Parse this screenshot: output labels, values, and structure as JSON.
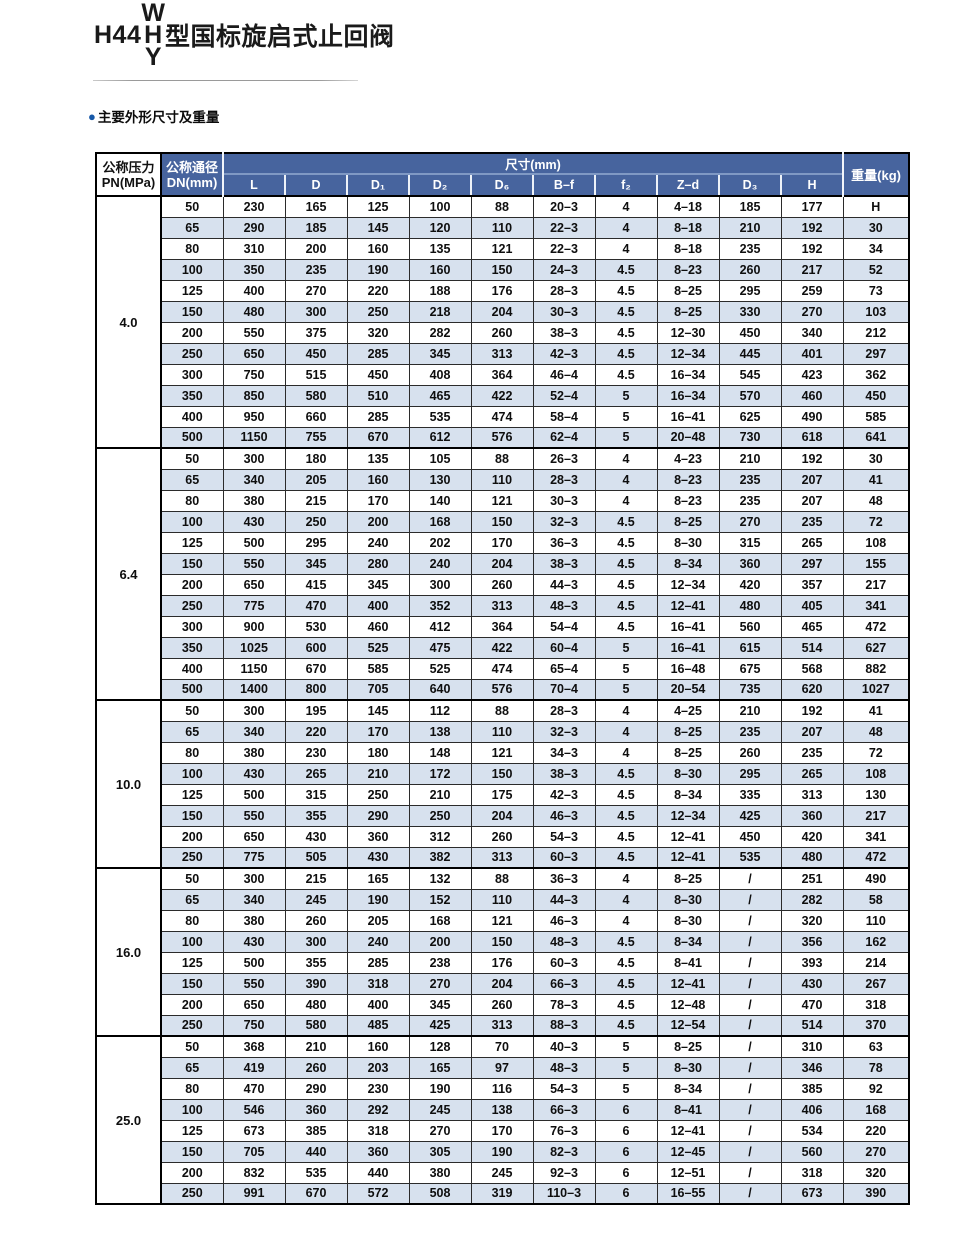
{
  "page": {
    "title": {
      "prefix": "H44",
      "stack_top": "W",
      "stack_mid": "H",
      "stack_bottom": "Y",
      "suffix": "型国标旋启式止回阀"
    },
    "section": {
      "bullet": "●",
      "label": "主要外形尺寸及重量"
    },
    "colors": {
      "header_blue": "#47649e",
      "row_stripe": "#d7e1ee",
      "bullet_blue": "#1658a8"
    }
  },
  "table": {
    "header": {
      "pressure_line1": "公称压力",
      "pressure_line2": "PN(MPa)",
      "dn_line1": "公称通径",
      "dn_line2": "DN(mm)",
      "size_span": "尺寸(mm)",
      "weight": "重量(kg)",
      "dim_cols": [
        "L",
        "D",
        "D₁",
        "D₂",
        "D₆",
        "B–f",
        "f₂",
        "Z–d",
        "D₃",
        "H"
      ]
    },
    "groups": [
      {
        "pn": "4.0",
        "rows": [
          [
            "50",
            "230",
            "165",
            "125",
            "100",
            "88",
            "20–3",
            "4",
            "4–18",
            "185",
            "177",
            "H"
          ],
          [
            "65",
            "290",
            "185",
            "145",
            "120",
            "110",
            "22–3",
            "4",
            "8–18",
            "210",
            "192",
            "30"
          ],
          [
            "80",
            "310",
            "200",
            "160",
            "135",
            "121",
            "22–3",
            "4",
            "8–18",
            "235",
            "192",
            "34"
          ],
          [
            "100",
            "350",
            "235",
            "190",
            "160",
            "150",
            "24–3",
            "4.5",
            "8–23",
            "260",
            "217",
            "52"
          ],
          [
            "125",
            "400",
            "270",
            "220",
            "188",
            "176",
            "28–3",
            "4.5",
            "8–25",
            "295",
            "259",
            "73"
          ],
          [
            "150",
            "480",
            "300",
            "250",
            "218",
            "204",
            "30–3",
            "4.5",
            "8–25",
            "330",
            "270",
            "103"
          ],
          [
            "200",
            "550",
            "375",
            "320",
            "282",
            "260",
            "38–3",
            "4.5",
            "12–30",
            "450",
            "340",
            "212"
          ],
          [
            "250",
            "650",
            "450",
            "285",
            "345",
            "313",
            "42–3",
            "4.5",
            "12–34",
            "445",
            "401",
            "297"
          ],
          [
            "300",
            "750",
            "515",
            "450",
            "408",
            "364",
            "46–4",
            "4.5",
            "16–34",
            "545",
            "423",
            "362"
          ],
          [
            "350",
            "850",
            "580",
            "510",
            "465",
            "422",
            "52–4",
            "5",
            "16–34",
            "570",
            "460",
            "450"
          ],
          [
            "400",
            "950",
            "660",
            "285",
            "535",
            "474",
            "58–4",
            "5",
            "16–41",
            "625",
            "490",
            "585"
          ],
          [
            "500",
            "1150",
            "755",
            "670",
            "612",
            "576",
            "62–4",
            "5",
            "20–48",
            "730",
            "618",
            "641"
          ]
        ]
      },
      {
        "pn": "6.4",
        "rows": [
          [
            "50",
            "300",
            "180",
            "135",
            "105",
            "88",
            "26–3",
            "4",
            "4–23",
            "210",
            "192",
            "30"
          ],
          [
            "65",
            "340",
            "205",
            "160",
            "130",
            "110",
            "28–3",
            "4",
            "8–23",
            "235",
            "207",
            "41"
          ],
          [
            "80",
            "380",
            "215",
            "170",
            "140",
            "121",
            "30–3",
            "4",
            "8–23",
            "235",
            "207",
            "48"
          ],
          [
            "100",
            "430",
            "250",
            "200",
            "168",
            "150",
            "32–3",
            "4.5",
            "8–25",
            "270",
            "235",
            "72"
          ],
          [
            "125",
            "500",
            "295",
            "240",
            "202",
            "170",
            "36–3",
            "4.5",
            "8–30",
            "315",
            "265",
            "108"
          ],
          [
            "150",
            "550",
            "345",
            "280",
            "240",
            "204",
            "38–3",
            "4.5",
            "8–34",
            "360",
            "297",
            "155"
          ],
          [
            "200",
            "650",
            "415",
            "345",
            "300",
            "260",
            "44–3",
            "4.5",
            "12–34",
            "420",
            "357",
            "217"
          ],
          [
            "250",
            "775",
            "470",
            "400",
            "352",
            "313",
            "48–3",
            "4.5",
            "12–41",
            "480",
            "405",
            "341"
          ],
          [
            "300",
            "900",
            "530",
            "460",
            "412",
            "364",
            "54–4",
            "4.5",
            "16–41",
            "560",
            "465",
            "472"
          ],
          [
            "350",
            "1025",
            "600",
            "525",
            "475",
            "422",
            "60–4",
            "5",
            "16–41",
            "615",
            "514",
            "627"
          ],
          [
            "400",
            "1150",
            "670",
            "585",
            "525",
            "474",
            "65–4",
            "5",
            "16–48",
            "675",
            "568",
            "882"
          ],
          [
            "500",
            "1400",
            "800",
            "705",
            "640",
            "576",
            "70–4",
            "5",
            "20–54",
            "735",
            "620",
            "1027"
          ]
        ]
      },
      {
        "pn": "10.0",
        "rows": [
          [
            "50",
            "300",
            "195",
            "145",
            "112",
            "88",
            "28–3",
            "4",
            "4–25",
            "210",
            "192",
            "41"
          ],
          [
            "65",
            "340",
            "220",
            "170",
            "138",
            "110",
            "32–3",
            "4",
            "8–25",
            "235",
            "207",
            "48"
          ],
          [
            "80",
            "380",
            "230",
            "180",
            "148",
            "121",
            "34–3",
            "4",
            "8–25",
            "260",
            "235",
            "72"
          ],
          [
            "100",
            "430",
            "265",
            "210",
            "172",
            "150",
            "38–3",
            "4.5",
            "8–30",
            "295",
            "265",
            "108"
          ],
          [
            "125",
            "500",
            "315",
            "250",
            "210",
            "175",
            "42–3",
            "4.5",
            "8–34",
            "335",
            "313",
            "130"
          ],
          [
            "150",
            "550",
            "355",
            "290",
            "250",
            "204",
            "46–3",
            "4.5",
            "12–34",
            "425",
            "360",
            "217"
          ],
          [
            "200",
            "650",
            "430",
            "360",
            "312",
            "260",
            "54–3",
            "4.5",
            "12–41",
            "450",
            "420",
            "341"
          ],
          [
            "250",
            "775",
            "505",
            "430",
            "382",
            "313",
            "60–3",
            "4.5",
            "12–41",
            "535",
            "480",
            "472"
          ]
        ]
      },
      {
        "pn": "16.0",
        "rows": [
          [
            "50",
            "300",
            "215",
            "165",
            "132",
            "88",
            "36–3",
            "4",
            "8–25",
            "/",
            "251",
            "490"
          ],
          [
            "65",
            "340",
            "245",
            "190",
            "152",
            "110",
            "44–3",
            "4",
            "8–30",
            "/",
            "282",
            "58"
          ],
          [
            "80",
            "380",
            "260",
            "205",
            "168",
            "121",
            "46–3",
            "4",
            "8–30",
            "/",
            "320",
            "110"
          ],
          [
            "100",
            "430",
            "300",
            "240",
            "200",
            "150",
            "48–3",
            "4.5",
            "8–34",
            "/",
            "356",
            "162"
          ],
          [
            "125",
            "500",
            "355",
            "285",
            "238",
            "176",
            "60–3",
            "4.5",
            "8–41",
            "/",
            "393",
            "214"
          ],
          [
            "150",
            "550",
            "390",
            "318",
            "270",
            "204",
            "66–3",
            "4.5",
            "12–41",
            "/",
            "430",
            "267"
          ],
          [
            "200",
            "650",
            "480",
            "400",
            "345",
            "260",
            "78–3",
            "4.5",
            "12–48",
            "/",
            "470",
            "318"
          ],
          [
            "250",
            "750",
            "580",
            "485",
            "425",
            "313",
            "88–3",
            "4.5",
            "12–54",
            "/",
            "514",
            "370"
          ]
        ]
      },
      {
        "pn": "25.0",
        "rows": [
          [
            "50",
            "368",
            "210",
            "160",
            "128",
            "70",
            "40–3",
            "5",
            "8–25",
            "/",
            "310",
            "63"
          ],
          [
            "65",
            "419",
            "260",
            "203",
            "165",
            "97",
            "48–3",
            "5",
            "8–30",
            "/",
            "346",
            "78"
          ],
          [
            "80",
            "470",
            "290",
            "230",
            "190",
            "116",
            "54–3",
            "5",
            "8–34",
            "/",
            "385",
            "92"
          ],
          [
            "100",
            "546",
            "360",
            "292",
            "245",
            "138",
            "66–3",
            "6",
            "8–41",
            "/",
            "406",
            "168"
          ],
          [
            "125",
            "673",
            "385",
            "318",
            "270",
            "170",
            "76–3",
            "6",
            "12–41",
            "/",
            "534",
            "220"
          ],
          [
            "150",
            "705",
            "440",
            "360",
            "305",
            "190",
            "82–3",
            "6",
            "12–45",
            "/",
            "560",
            "270"
          ],
          [
            "200",
            "832",
            "535",
            "440",
            "380",
            "245",
            "92–3",
            "6",
            "12–51",
            "/",
            "318",
            "320"
          ],
          [
            "250",
            "991",
            "670",
            "572",
            "508",
            "319",
            "110–3",
            "6",
            "16–55",
            "/",
            "673",
            "390"
          ]
        ]
      }
    ]
  }
}
